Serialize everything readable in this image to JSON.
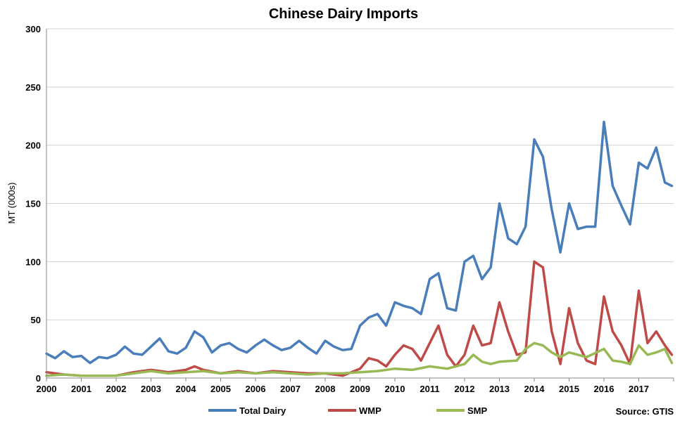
{
  "chart_data": {
    "type": "line",
    "title": "Chinese Dairy Imports",
    "ylabel": "MT (000s)",
    "xlabel": "",
    "source": "Source: GTIS",
    "ylim": [
      0,
      300
    ],
    "yticks": [
      0,
      50,
      100,
      150,
      200,
      250,
      300
    ],
    "xlim": [
      2000,
      2018
    ],
    "xticks": [
      "2000",
      "2001",
      "2002",
      "2003",
      "2004",
      "2005",
      "2006",
      "2007",
      "2008",
      "2009",
      "2010",
      "2011",
      "2012",
      "2013",
      "2014",
      "2015",
      "2016",
      "2017"
    ],
    "grid": "horizontal",
    "legend_position": "bottom",
    "series": [
      {
        "name": "Total Dairy",
        "color": "#4a7ebb",
        "points": [
          [
            2000.0,
            21
          ],
          [
            2000.25,
            17
          ],
          [
            2000.5,
            23
          ],
          [
            2000.75,
            18
          ],
          [
            2001.0,
            19
          ],
          [
            2001.25,
            13
          ],
          [
            2001.5,
            18
          ],
          [
            2001.75,
            17
          ],
          [
            2002.0,
            20
          ],
          [
            2002.25,
            27
          ],
          [
            2002.5,
            21
          ],
          [
            2002.75,
            20
          ],
          [
            2003.0,
            27
          ],
          [
            2003.25,
            34
          ],
          [
            2003.5,
            23
          ],
          [
            2003.75,
            21
          ],
          [
            2004.0,
            26
          ],
          [
            2004.25,
            40
          ],
          [
            2004.5,
            35
          ],
          [
            2004.75,
            22
          ],
          [
            2005.0,
            28
          ],
          [
            2005.25,
            30
          ],
          [
            2005.5,
            25
          ],
          [
            2005.75,
            22
          ],
          [
            2006.0,
            28
          ],
          [
            2006.25,
            33
          ],
          [
            2006.5,
            28
          ],
          [
            2006.75,
            24
          ],
          [
            2007.0,
            26
          ],
          [
            2007.25,
            32
          ],
          [
            2007.5,
            26
          ],
          [
            2007.75,
            21
          ],
          [
            2008.0,
            32
          ],
          [
            2008.25,
            27
          ],
          [
            2008.5,
            24
          ],
          [
            2008.75,
            25
          ],
          [
            2009.0,
            45
          ],
          [
            2009.25,
            52
          ],
          [
            2009.5,
            55
          ],
          [
            2009.75,
            45
          ],
          [
            2010.0,
            65
          ],
          [
            2010.25,
            62
          ],
          [
            2010.5,
            60
          ],
          [
            2010.75,
            55
          ],
          [
            2011.0,
            85
          ],
          [
            2011.25,
            90
          ],
          [
            2011.5,
            60
          ],
          [
            2011.75,
            58
          ],
          [
            2012.0,
            100
          ],
          [
            2012.25,
            105
          ],
          [
            2012.5,
            85
          ],
          [
            2012.75,
            95
          ],
          [
            2013.0,
            150
          ],
          [
            2013.25,
            120
          ],
          [
            2013.5,
            115
          ],
          [
            2013.75,
            130
          ],
          [
            2014.0,
            205
          ],
          [
            2014.25,
            190
          ],
          [
            2014.5,
            145
          ],
          [
            2014.75,
            108
          ],
          [
            2015.0,
            150
          ],
          [
            2015.25,
            128
          ],
          [
            2015.5,
            130
          ],
          [
            2015.75,
            130
          ],
          [
            2016.0,
            220
          ],
          [
            2016.25,
            165
          ],
          [
            2016.5,
            148
          ],
          [
            2016.75,
            132
          ],
          [
            2017.0,
            185
          ],
          [
            2017.25,
            180
          ],
          [
            2017.5,
            198
          ],
          [
            2017.75,
            168
          ],
          [
            2017.95,
            165
          ]
        ]
      },
      {
        "name": "WMP",
        "color": "#be4b48",
        "points": [
          [
            2000.0,
            5
          ],
          [
            2000.5,
            3
          ],
          [
            2001.0,
            2
          ],
          [
            2001.5,
            2
          ],
          [
            2002.0,
            2
          ],
          [
            2002.5,
            5
          ],
          [
            2003.0,
            7
          ],
          [
            2003.5,
            5
          ],
          [
            2004.0,
            7
          ],
          [
            2004.25,
            10
          ],
          [
            2004.5,
            7
          ],
          [
            2005.0,
            4
          ],
          [
            2005.5,
            6
          ],
          [
            2006.0,
            4
          ],
          [
            2006.5,
            6
          ],
          [
            2007.0,
            5
          ],
          [
            2007.5,
            4
          ],
          [
            2008.0,
            4
          ],
          [
            2008.5,
            2
          ],
          [
            2009.0,
            8
          ],
          [
            2009.25,
            17
          ],
          [
            2009.5,
            15
          ],
          [
            2009.75,
            10
          ],
          [
            2010.0,
            20
          ],
          [
            2010.25,
            28
          ],
          [
            2010.5,
            25
          ],
          [
            2010.75,
            15
          ],
          [
            2011.0,
            30
          ],
          [
            2011.25,
            45
          ],
          [
            2011.5,
            20
          ],
          [
            2011.75,
            10
          ],
          [
            2012.0,
            20
          ],
          [
            2012.25,
            45
          ],
          [
            2012.5,
            28
          ],
          [
            2012.75,
            30
          ],
          [
            2013.0,
            65
          ],
          [
            2013.25,
            40
          ],
          [
            2013.5,
            20
          ],
          [
            2013.75,
            22
          ],
          [
            2014.0,
            100
          ],
          [
            2014.25,
            95
          ],
          [
            2014.5,
            40
          ],
          [
            2014.75,
            12
          ],
          [
            2015.0,
            60
          ],
          [
            2015.25,
            30
          ],
          [
            2015.5,
            15
          ],
          [
            2015.75,
            12
          ],
          [
            2016.0,
            70
          ],
          [
            2016.25,
            40
          ],
          [
            2016.5,
            28
          ],
          [
            2016.75,
            12
          ],
          [
            2017.0,
            75
          ],
          [
            2017.25,
            30
          ],
          [
            2017.5,
            40
          ],
          [
            2017.75,
            28
          ],
          [
            2017.95,
            20
          ]
        ]
      },
      {
        "name": "SMP",
        "color": "#98b954",
        "points": [
          [
            2000.0,
            2
          ],
          [
            2000.5,
            3
          ],
          [
            2001.0,
            2
          ],
          [
            2001.5,
            2
          ],
          [
            2002.0,
            2
          ],
          [
            2002.5,
            4
          ],
          [
            2003.0,
            6
          ],
          [
            2003.5,
            4
          ],
          [
            2004.0,
            5
          ],
          [
            2004.5,
            6
          ],
          [
            2005.0,
            4
          ],
          [
            2005.5,
            5
          ],
          [
            2006.0,
            4
          ],
          [
            2006.5,
            5
          ],
          [
            2007.0,
            4
          ],
          [
            2007.5,
            3
          ],
          [
            2008.0,
            4
          ],
          [
            2008.5,
            4
          ],
          [
            2009.0,
            5
          ],
          [
            2009.5,
            6
          ],
          [
            2010.0,
            8
          ],
          [
            2010.5,
            7
          ],
          [
            2011.0,
            10
          ],
          [
            2011.5,
            8
          ],
          [
            2012.0,
            12
          ],
          [
            2012.25,
            20
          ],
          [
            2012.5,
            14
          ],
          [
            2012.75,
            12
          ],
          [
            2013.0,
            14
          ],
          [
            2013.5,
            15
          ],
          [
            2013.75,
            25
          ],
          [
            2014.0,
            30
          ],
          [
            2014.25,
            28
          ],
          [
            2014.5,
            22
          ],
          [
            2014.75,
            18
          ],
          [
            2015.0,
            22
          ],
          [
            2015.5,
            18
          ],
          [
            2016.0,
            25
          ],
          [
            2016.25,
            15
          ],
          [
            2016.5,
            14
          ],
          [
            2016.75,
            12
          ],
          [
            2017.0,
            28
          ],
          [
            2017.25,
            20
          ],
          [
            2017.5,
            22
          ],
          [
            2017.75,
            25
          ],
          [
            2017.95,
            13
          ]
        ]
      }
    ]
  }
}
